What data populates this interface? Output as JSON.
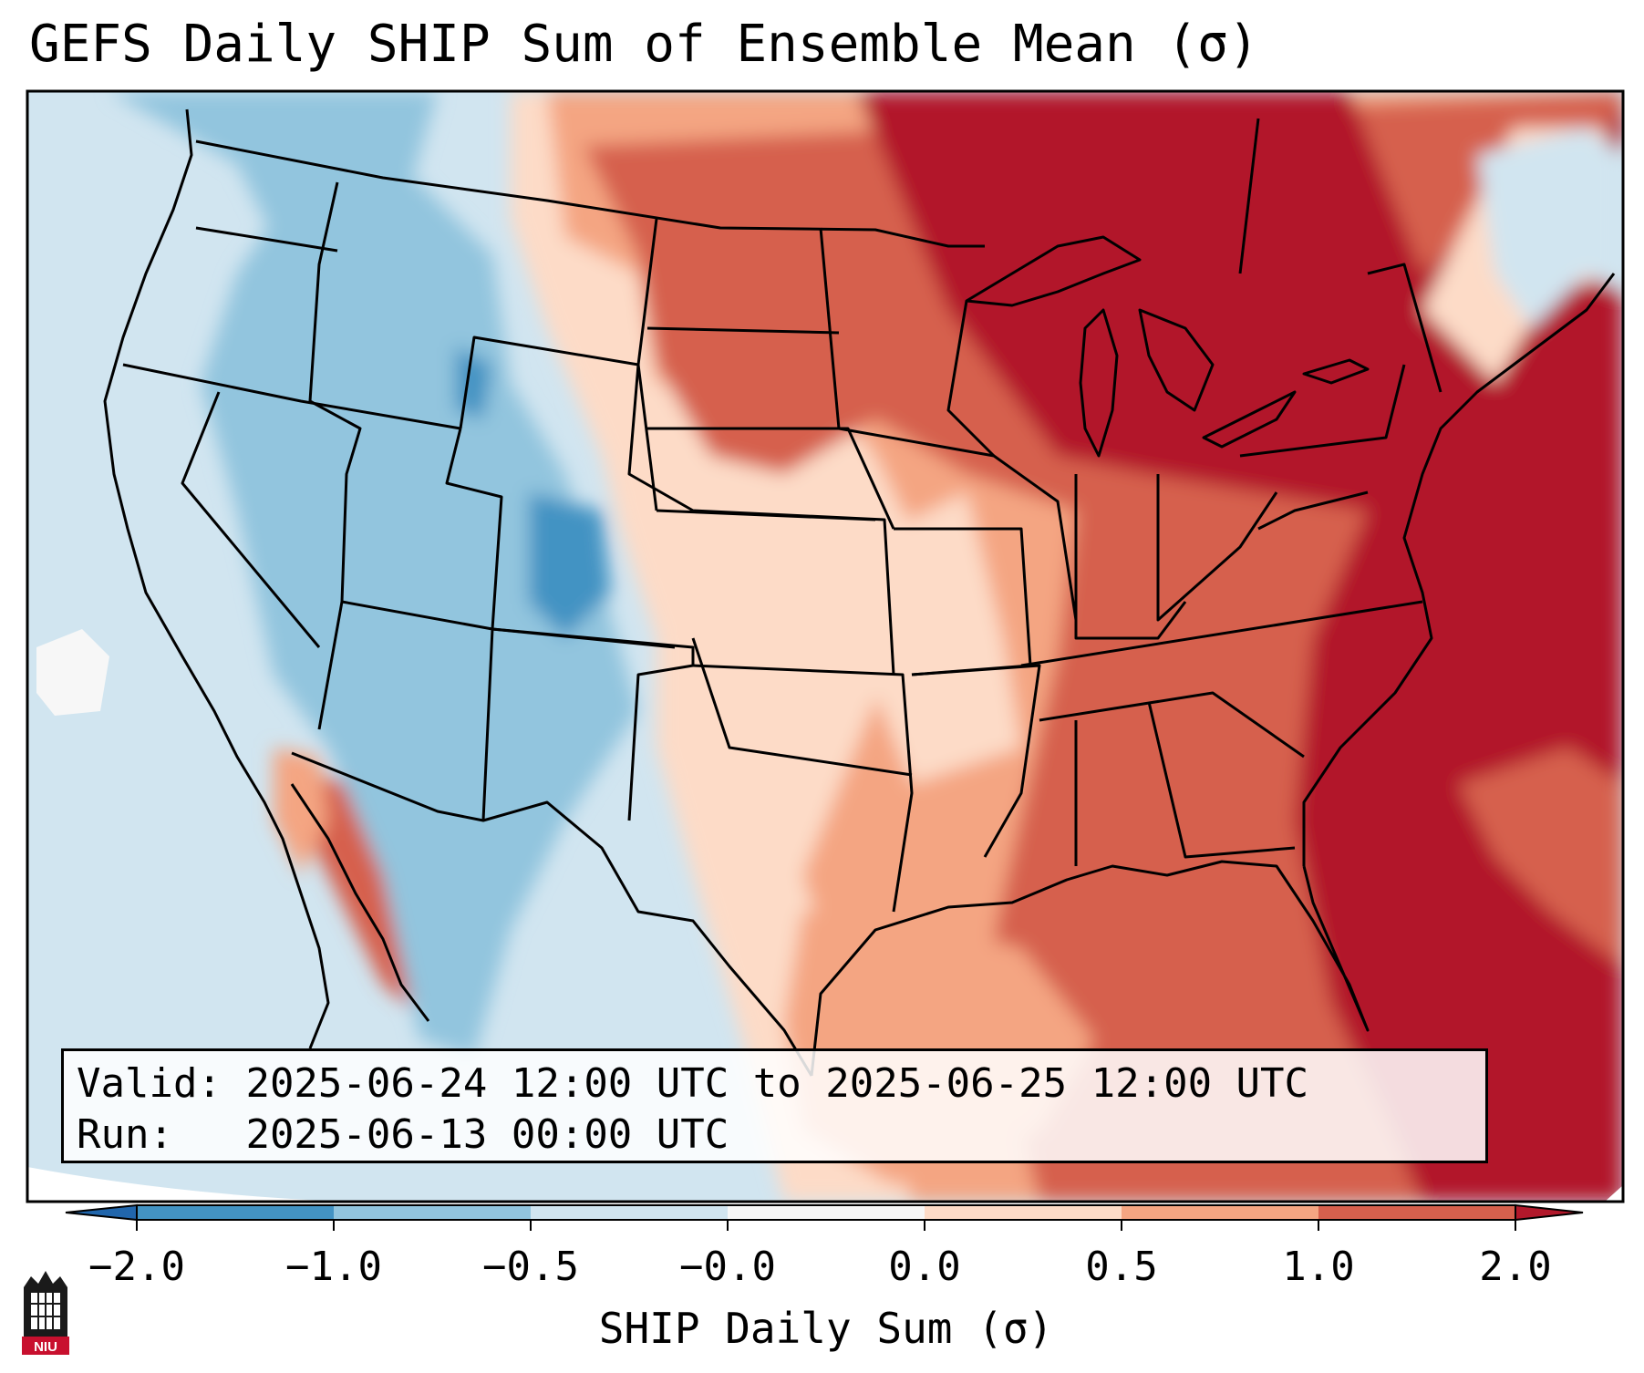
{
  "title": "GEFS Daily SHIP Sum of Ensemble Mean (σ)",
  "info": {
    "valid_label": "Valid:",
    "valid_value": "2025-06-24 12:00 UTC to 2025-06-25 12:00 UTC",
    "run_label": "Run:",
    "run_value": "2025-06-13 00:00 UTC"
  },
  "colorbar": {
    "label": "SHIP Daily Sum (σ)",
    "ticks": [
      "−2.0",
      "−1.0",
      "−0.5",
      "−0.0",
      "0.0",
      "0.5",
      "1.0",
      "2.0"
    ],
    "bins": [
      {
        "range": "< -2.0",
        "color": "#2166ac"
      },
      {
        "range": "-2.0 to -1.0",
        "color": "#4393c3"
      },
      {
        "range": "-1.0 to -0.5",
        "color": "#92c5de"
      },
      {
        "range": "-0.5 to -0.0",
        "color": "#d1e5f0"
      },
      {
        "range": "-0.0 to 0.0",
        "color": "#f7f7f7"
      },
      {
        "range": "0.0 to 0.5",
        "color": "#fddbc7"
      },
      {
        "range": "0.5 to 1.0",
        "color": "#f4a582"
      },
      {
        "range": "1.0 to 2.0",
        "color": "#d6604d"
      },
      {
        "range": "> 2.0",
        "color": "#b2182b"
      }
    ]
  },
  "logo": {
    "text": "NIU"
  }
}
